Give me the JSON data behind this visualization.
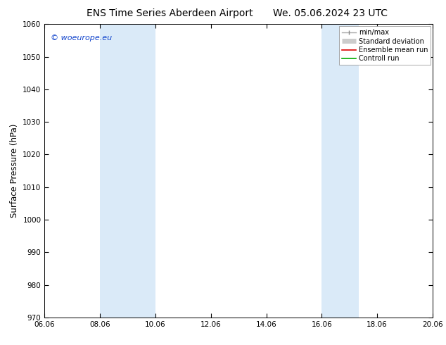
{
  "title_left": "ENS Time Series Aberdeen Airport",
  "title_right": "We. 05.06.2024 23 UTC",
  "ylabel": "Surface Pressure (hPa)",
  "ylim": [
    970,
    1060
  ],
  "yticks": [
    970,
    980,
    990,
    1000,
    1010,
    1020,
    1030,
    1040,
    1050,
    1060
  ],
  "xtick_labels": [
    "06.06",
    "08.06",
    "10.06",
    "12.06",
    "14.06",
    "16.06",
    "18.06",
    "20.06"
  ],
  "xtick_values": [
    0,
    2,
    4,
    6,
    8,
    10,
    12,
    14
  ],
  "xlim": [
    0,
    14
  ],
  "shaded_bands": [
    {
      "x_start": 2,
      "x_end": 4
    },
    {
      "x_start": 10,
      "x_end": 11.333
    }
  ],
  "shaded_color": "#daeaf8",
  "background_color": "#ffffff",
  "watermark_text": "© woeurope.eu",
  "watermark_color": "#1144cc",
  "title_fontsize": 10,
  "tick_fontsize": 7.5,
  "label_fontsize": 8.5,
  "legend_fontsize": 7,
  "watermark_fontsize": 8
}
